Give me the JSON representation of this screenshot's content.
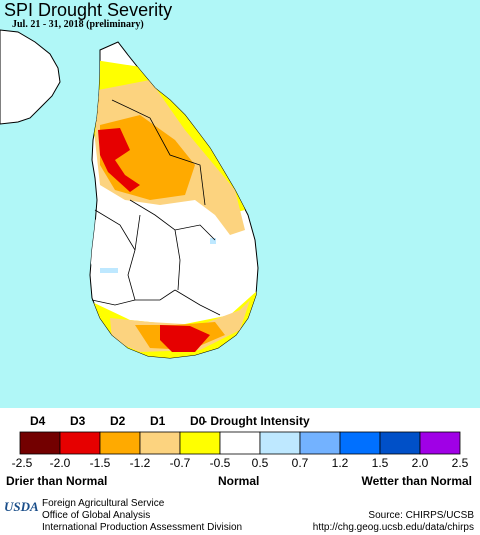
{
  "title": "SPI Drought Severity",
  "subtitle": "Jul. 21 - 31, 2018 (preliminary)",
  "colors": {
    "water": "#b0f7f7",
    "land": "#ffffff",
    "d4": "#730000",
    "d3": "#e60000",
    "d2": "#ffaa00",
    "d1": "#fcd37f",
    "d0": "#ffff00",
    "w0": "#bee8ff",
    "w1": "#73b2ff",
    "w2": "#0070ff",
    "w3": "#0050c8",
    "w4": "#a000e6"
  },
  "legend": {
    "categories": [
      "D4",
      "D3",
      "D2",
      "D1",
      "D0"
    ],
    "intensity_label": "- Drought Intensity",
    "ticks": [
      "-2.5",
      "-2.0",
      "-1.5",
      "-1.2",
      "-0.7",
      "-0.5",
      "0.5",
      "0.7",
      "1.2",
      "1.5",
      "2.0",
      "2.5"
    ],
    "left_label": "Drier than Normal",
    "center_label": "Normal",
    "right_label": "Wetter than Normal"
  },
  "footer": {
    "logo_text": "USDA",
    "org_lines": [
      "Foreign Agricultural Service",
      "Office of Global Analysis",
      "International Production Assessment Division"
    ],
    "source": "Source: CHIRPS/UCSB",
    "url": "http://chg.geog.ucsb.edu/data/chirps"
  }
}
